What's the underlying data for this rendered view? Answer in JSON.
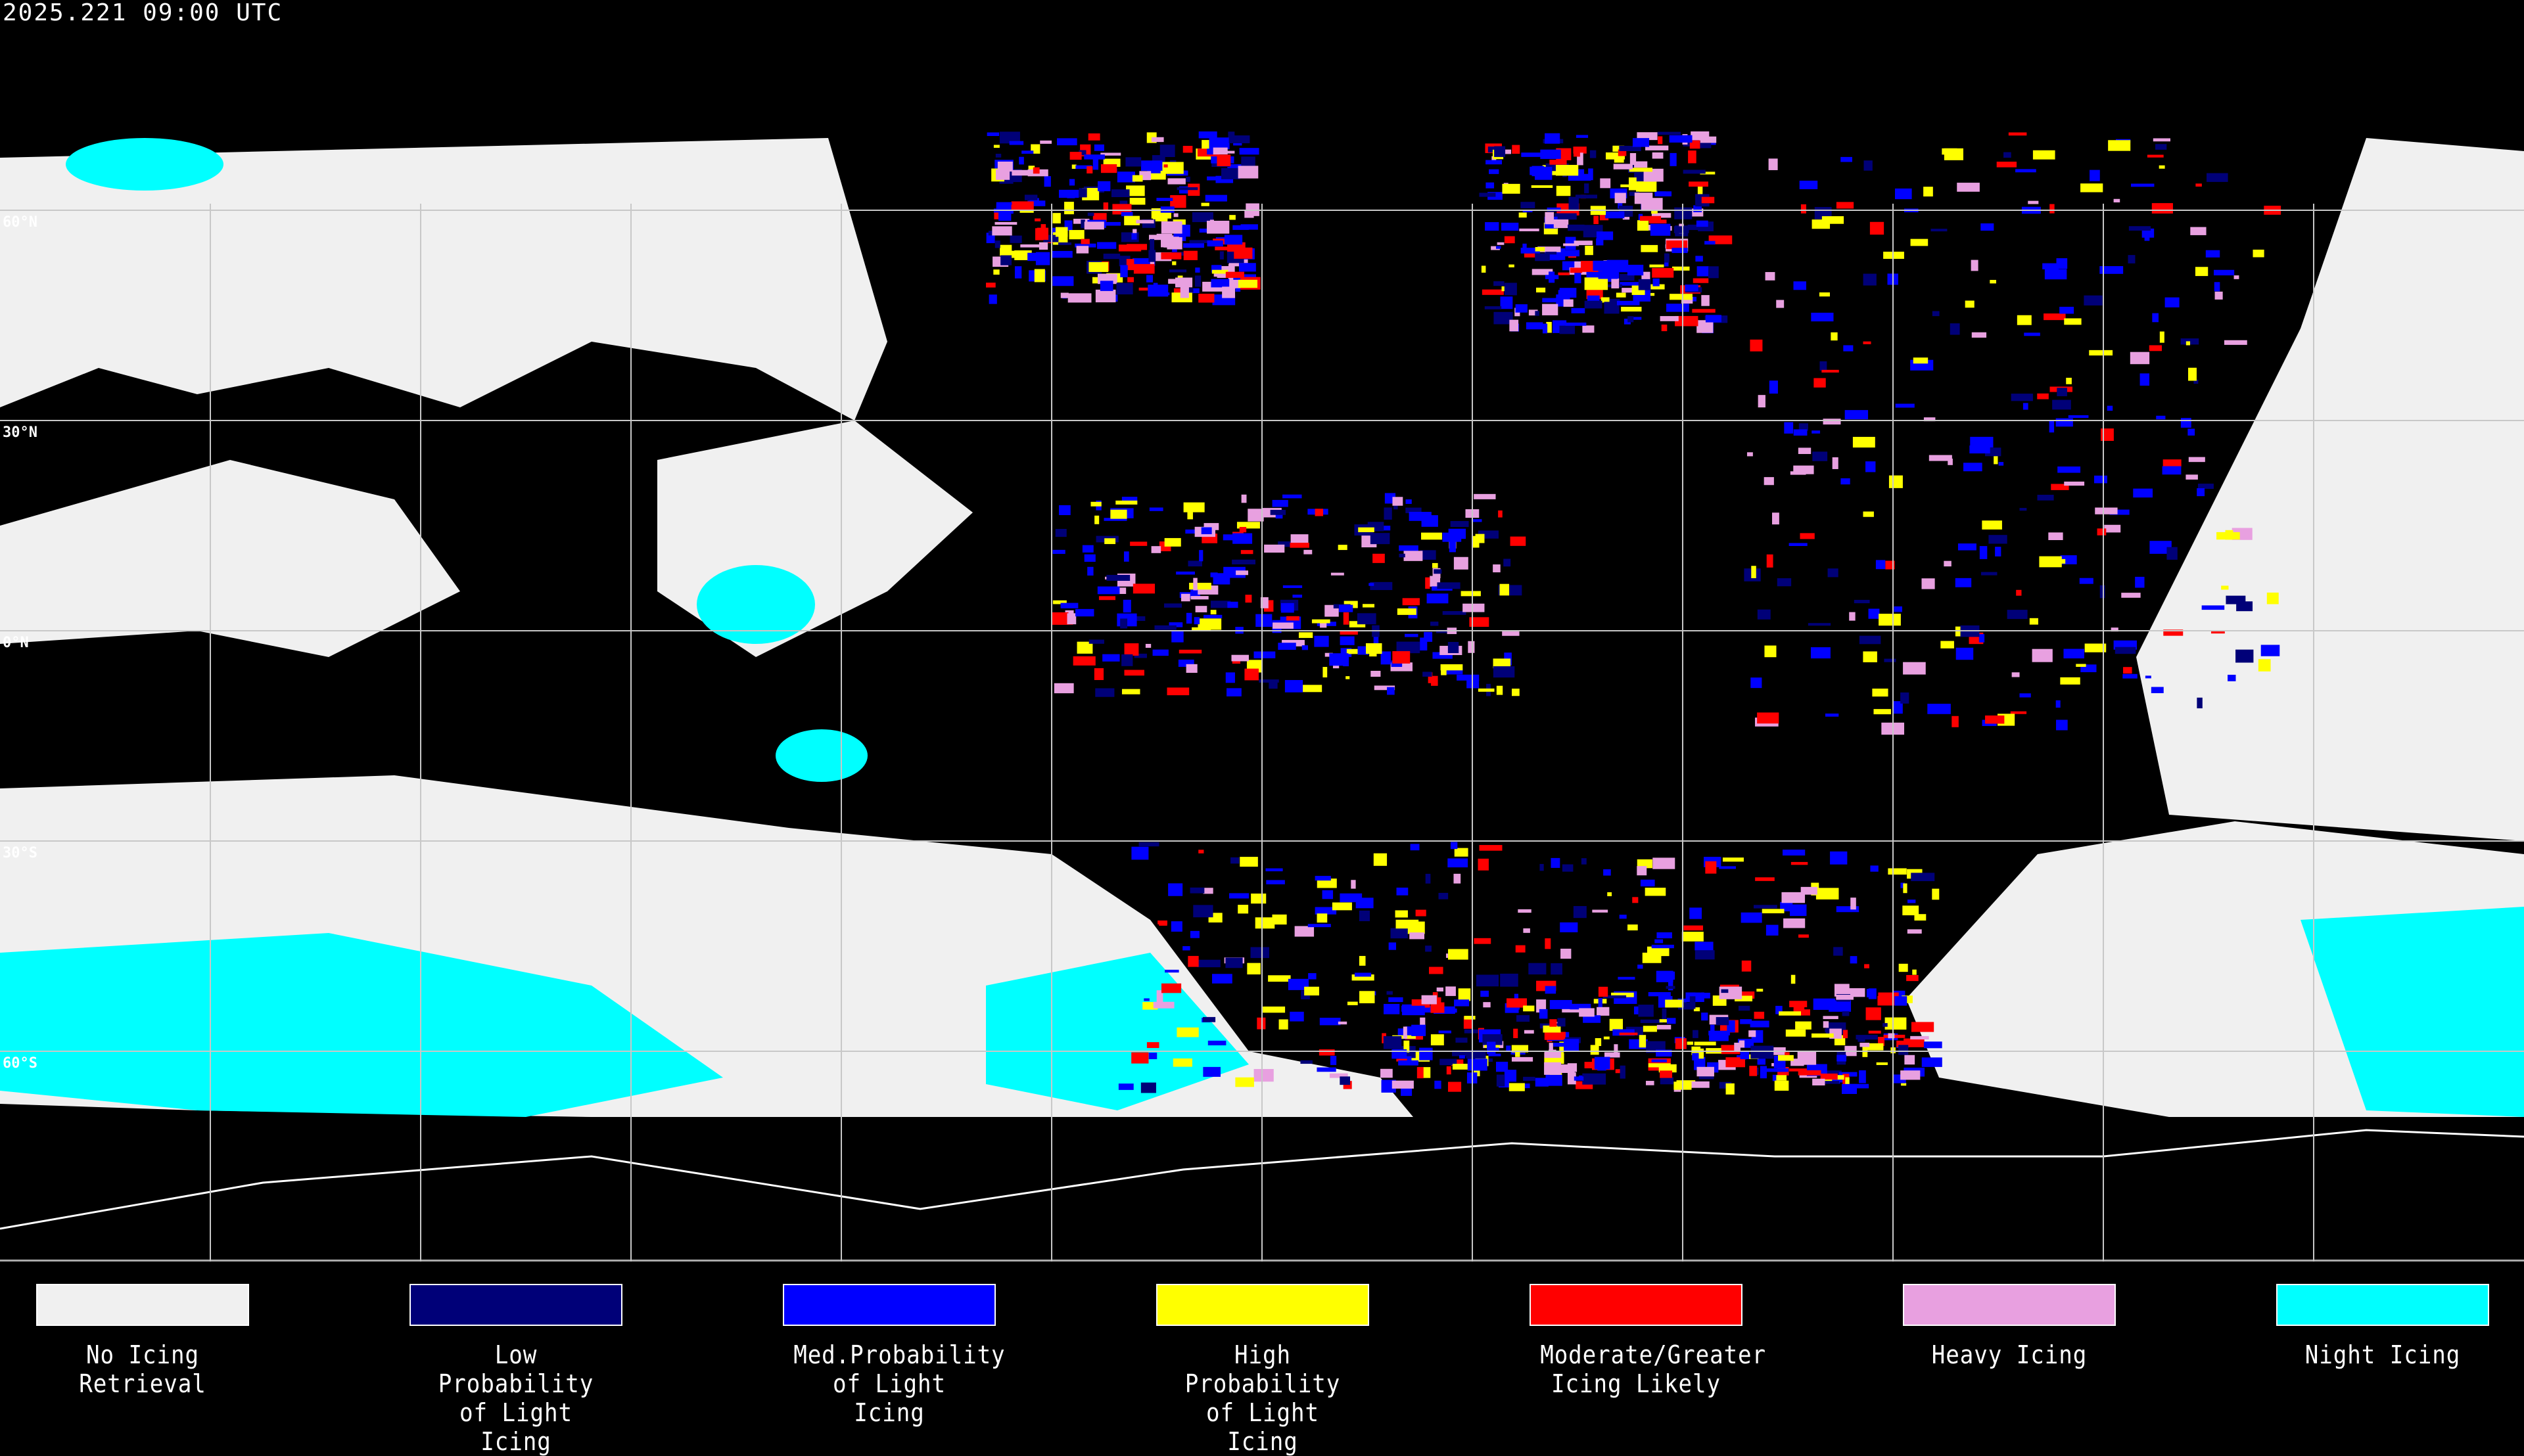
{
  "header": {
    "timestamp": "2025.221 09:00 UTC"
  },
  "map": {
    "projection": "equirectangular",
    "gridlines": "30-degree latitude/longitude",
    "latitude_labels": [
      "60°N",
      "30°N",
      "0°N",
      "30°S",
      "60°S"
    ],
    "coastline_color": "#ffffff",
    "background_color": "#000000"
  },
  "legend": {
    "items": [
      {
        "label": "No Icing\nRetrieval",
        "color": "#f0f0f0"
      },
      {
        "label": "Low Probability\nof Light Icing",
        "color": "#000078"
      },
      {
        "label": "Med.Probability\nof Light Icing",
        "color": "#0000ff"
      },
      {
        "label": "High Probability\nof Light Icing",
        "color": "#ffff00"
      },
      {
        "label": "Moderate/Greater\nIcing Likely",
        "color": "#ff0000"
      },
      {
        "label": "Heavy Icing",
        "color": "#e8a0e0"
      },
      {
        "label": "Night Icing",
        "color": "#00ffff"
      }
    ]
  }
}
